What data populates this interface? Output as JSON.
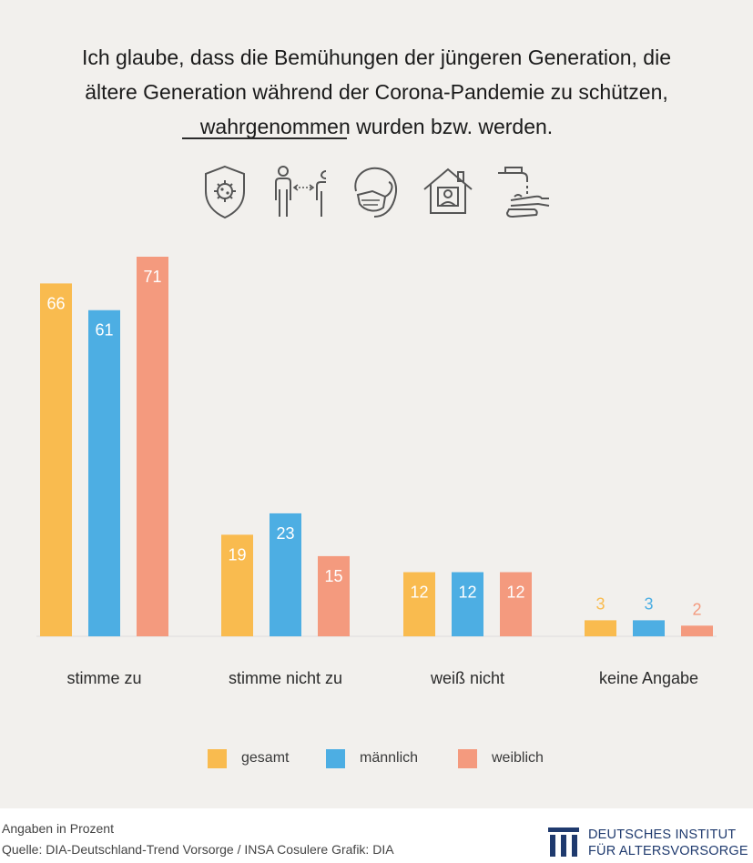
{
  "title": {
    "line1": "Ich glaube, dass die Bemühungen der jüngeren Generation, die",
    "line2": "ältere Generation während der Corona-Pandemie zu schützen,",
    "line3_underlined": "wahrgenommen",
    "line3_rest": " wurden bzw. werden."
  },
  "icons": [
    "virus-shield-icon",
    "social-distance-icon",
    "face-mask-icon",
    "stay-home-icon",
    "hand-washing-icon"
  ],
  "colors": {
    "gesamt": "#f9bb4f",
    "maennlich": "#4daee3",
    "weiblich": "#f49a7e",
    "background": "#f2f0ed"
  },
  "chart_data": {
    "type": "bar",
    "categories": [
      "stimme zu",
      "stimme nicht zu",
      "weiß nicht",
      "keine Angabe"
    ],
    "series": [
      {
        "name": "gesamt",
        "values": [
          66,
          19,
          12,
          3
        ]
      },
      {
        "name": "männlich",
        "values": [
          61,
          23,
          12,
          3
        ]
      },
      {
        "name": "weiblich",
        "values": [
          71,
          15,
          12,
          2
        ]
      }
    ],
    "value_labels": [
      [
        "66",
        "19",
        "12",
        "3"
      ],
      [
        "61",
        "23",
        "12",
        "3"
      ],
      [
        "71",
        "15",
        "12",
        "2"
      ]
    ],
    "ylim": [
      0,
      71
    ],
    "grid": false,
    "legend": "bottom"
  },
  "footer": {
    "note": "Angaben in Prozent",
    "source": "Quelle: DIA-Deutschland-Trend Vorsorge / INSA Cosulere  Grafik: DIA",
    "logo_line1": "DEUTSCHES INSTITUT",
    "logo_line2": "FÜR ALTERSVORSORGE"
  }
}
